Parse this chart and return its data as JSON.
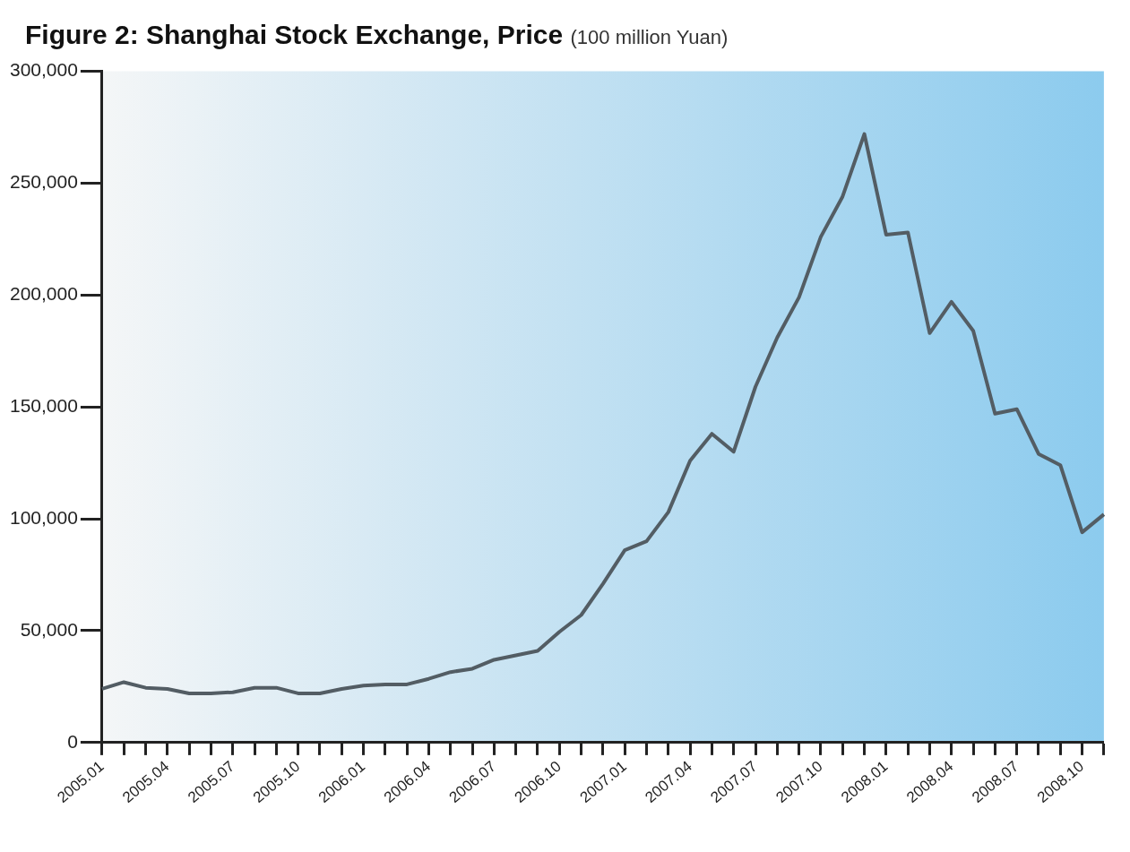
{
  "chart_data": {
    "type": "line",
    "title": "Figure 2: Shanghai Stock Exchange, Price",
    "subtitle": "(100 million Yuan)",
    "categories": [
      "2005.01",
      null,
      null,
      "2005.04",
      null,
      null,
      "2005.07",
      null,
      null,
      "2005.10",
      null,
      null,
      "2006.01",
      null,
      null,
      "2006.04",
      null,
      null,
      "2006.07",
      null,
      null,
      "2006.10",
      null,
      null,
      "2007.01",
      null,
      null,
      "2007.04",
      null,
      null,
      "2007.07",
      null,
      null,
      "2007.10",
      null,
      null,
      "2008.01",
      null,
      null,
      "2008.04",
      null,
      null,
      "2008.07",
      null,
      null,
      "2008.10",
      null
    ],
    "series": [
      {
        "color": "#535d64",
        "values": [
          24000,
          27000,
          24500,
          24000,
          22000,
          22000,
          22500,
          24500,
          24500,
          22000,
          22000,
          24000,
          25500,
          26000,
          26000,
          28500,
          31500,
          33000,
          37000,
          39000,
          41000,
          49500,
          57000,
          71000,
          86000,
          90000,
          103000,
          126000,
          138000,
          130000,
          159000,
          181000,
          199000,
          226000,
          244000,
          272000,
          227000,
          228000,
          183000,
          197000,
          184000,
          147000,
          149000,
          129000,
          124000,
          94000,
          102000
        ]
      }
    ],
    "ylim": [
      0,
      300000
    ],
    "yticks": [
      0,
      {
        "value": 50000,
        "label": "50,000"
      },
      {
        "value": 100000,
        "label": "100,000"
      },
      {
        "value": 150000,
        "label": "150,000"
      },
      {
        "value": 200000,
        "label": "200,000"
      },
      {
        "value": 250000,
        "label": "250,000"
      },
      {
        "value": 300000,
        "label": "300,000"
      }
    ],
    "grid": false,
    "legend": false,
    "marker": "none",
    "line_style": "solid"
  }
}
